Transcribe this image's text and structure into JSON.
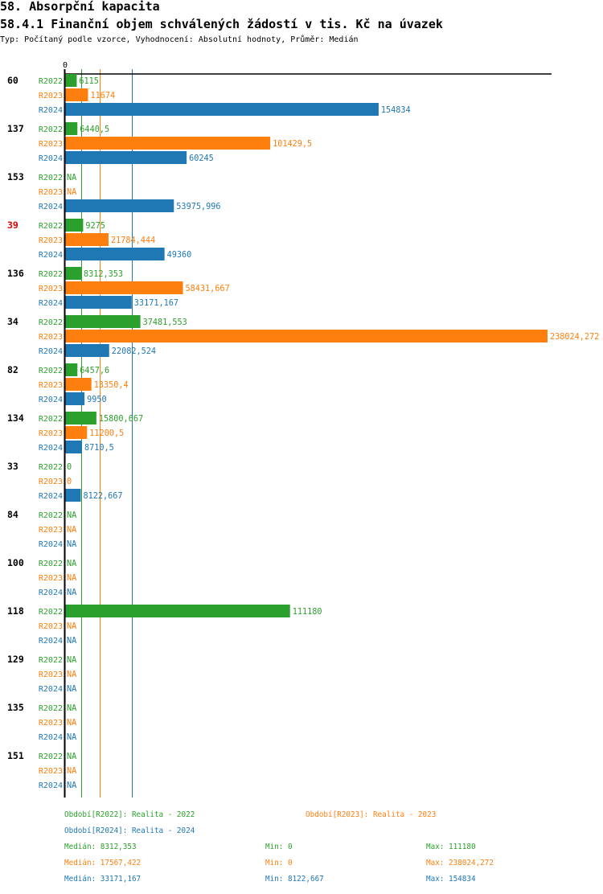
{
  "header": {
    "title": "58. Absorpční kapacita",
    "subtitle": "58.4.1 Finanční objem schválených žádostí v tis. Kč na úvazek",
    "meta": "Typ: Počítaný podle vzorce, Vyhodnocení: Absolutní hodnoty, Průměr: Medián"
  },
  "chart_data": {
    "type": "bar",
    "orientation": "horizontal",
    "title": "58.4.1 Finanční objem schválených žádostí v tis. Kč na úvazek",
    "xlabel": "",
    "ylabel": "",
    "xlim": [
      0,
      238024.272
    ],
    "x_tick_labels": [
      "0"
    ],
    "grid": false,
    "categories": [
      "60",
      "137",
      "153",
      "39",
      "136",
      "34",
      "82",
      "134",
      "33",
      "84",
      "100",
      "118",
      "129",
      "135",
      "151"
    ],
    "highlight": {
      "category": "39",
      "color": "#e00000"
    },
    "series": [
      {
        "name": "R2022",
        "color": "#2ca02c",
        "values": [
          6115,
          6440.5,
          null,
          9275,
          8312.353,
          37481.553,
          6457.6,
          15800.667,
          0,
          null,
          null,
          111180,
          null,
          null,
          null
        ],
        "labels": [
          "6115",
          "6440,5",
          "NA",
          "9275",
          "8312,353",
          "37481,553",
          "6457,6",
          "15800,667",
          "0",
          "NA",
          "NA",
          "111180",
          "NA",
          "NA",
          "NA"
        ],
        "median": 8312.353
      },
      {
        "name": "R2023",
        "color": "#ff7f0e",
        "values": [
          11674,
          101429.5,
          null,
          21784.444,
          58431.667,
          238024.272,
          13350.4,
          11200.5,
          0,
          null,
          null,
          null,
          null,
          null,
          null
        ],
        "labels": [
          "11674",
          "101429,5",
          "NA",
          "21784,444",
          "58431,667",
          "238024,272",
          "13350,4",
          "11200,5",
          "0",
          "NA",
          "NA",
          "NA",
          "NA",
          "NA",
          "NA"
        ],
        "median": 17567.422
      },
      {
        "name": "R2024",
        "color": "#1f77b4",
        "values": [
          154834,
          60245,
          53975.996,
          49360,
          33171.167,
          22082.524,
          9950,
          8710.5,
          8122.667,
          null,
          null,
          null,
          null,
          null,
          null
        ],
        "labels": [
          "154834",
          "60245",
          "53975,996",
          "49360",
          "33171,167",
          "22082,524",
          "9950",
          "8710,5",
          "8122,667",
          "NA",
          "NA",
          "NA",
          "NA",
          "NA",
          "NA"
        ],
        "median": 33171.167
      }
    ]
  },
  "legend": {
    "items": [
      {
        "text": "Období[R2022]: Realita - 2022",
        "color": "#2ca02c"
      },
      {
        "text": "Období[R2023]: Realita - 2023",
        "color": "#ff7f0e"
      },
      {
        "text": "Období[R2024]: Realita - 2024",
        "color": "#1f77b4"
      }
    ]
  },
  "stats": [
    {
      "median": "Medián: 8312,353",
      "min": "Min: 0",
      "max": "Max: 111180",
      "color": "#2ca02c"
    },
    {
      "median": "Medián: 17567,422",
      "min": "Min: 0",
      "max": "Max: 238024,272",
      "color": "#ff7f0e"
    },
    {
      "median": "Medián: 33171,167",
      "min": "Min: 8122,667",
      "max": "Max: 154834",
      "color": "#1f77b4"
    }
  ]
}
